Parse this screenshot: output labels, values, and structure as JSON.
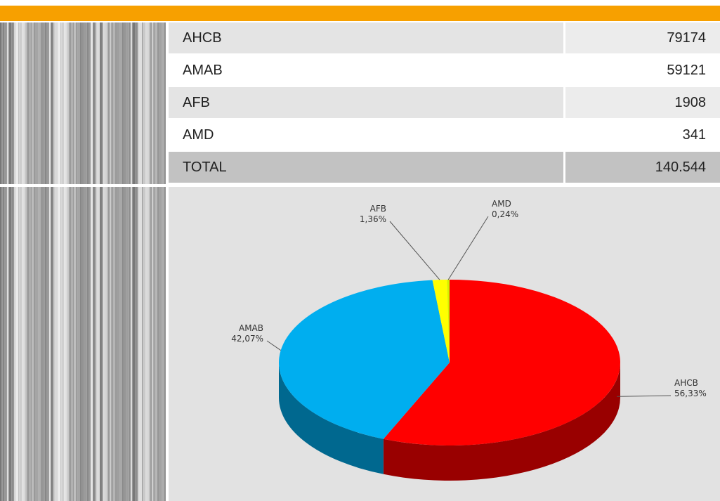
{
  "table": {
    "rows": [
      [
        "AHCB",
        "79174"
      ],
      [
        "AMAB",
        "59121"
      ],
      [
        "AFB",
        "1908"
      ],
      [
        "AMD",
        "341"
      ],
      [
        "TOTAL",
        "140.544"
      ]
    ]
  },
  "chart_data": {
    "type": "pie",
    "categories": [
      "AHCB",
      "AMAB",
      "AFB",
      "AMD"
    ],
    "values": [
      56.33,
      42.07,
      1.36,
      0.24
    ],
    "value_labels": [
      "56,33%",
      "42,07%",
      "1,36%",
      "0,24%"
    ],
    "colors": [
      "#ff0000",
      "#00aeef",
      "#ffff00",
      "#d4f000"
    ]
  }
}
